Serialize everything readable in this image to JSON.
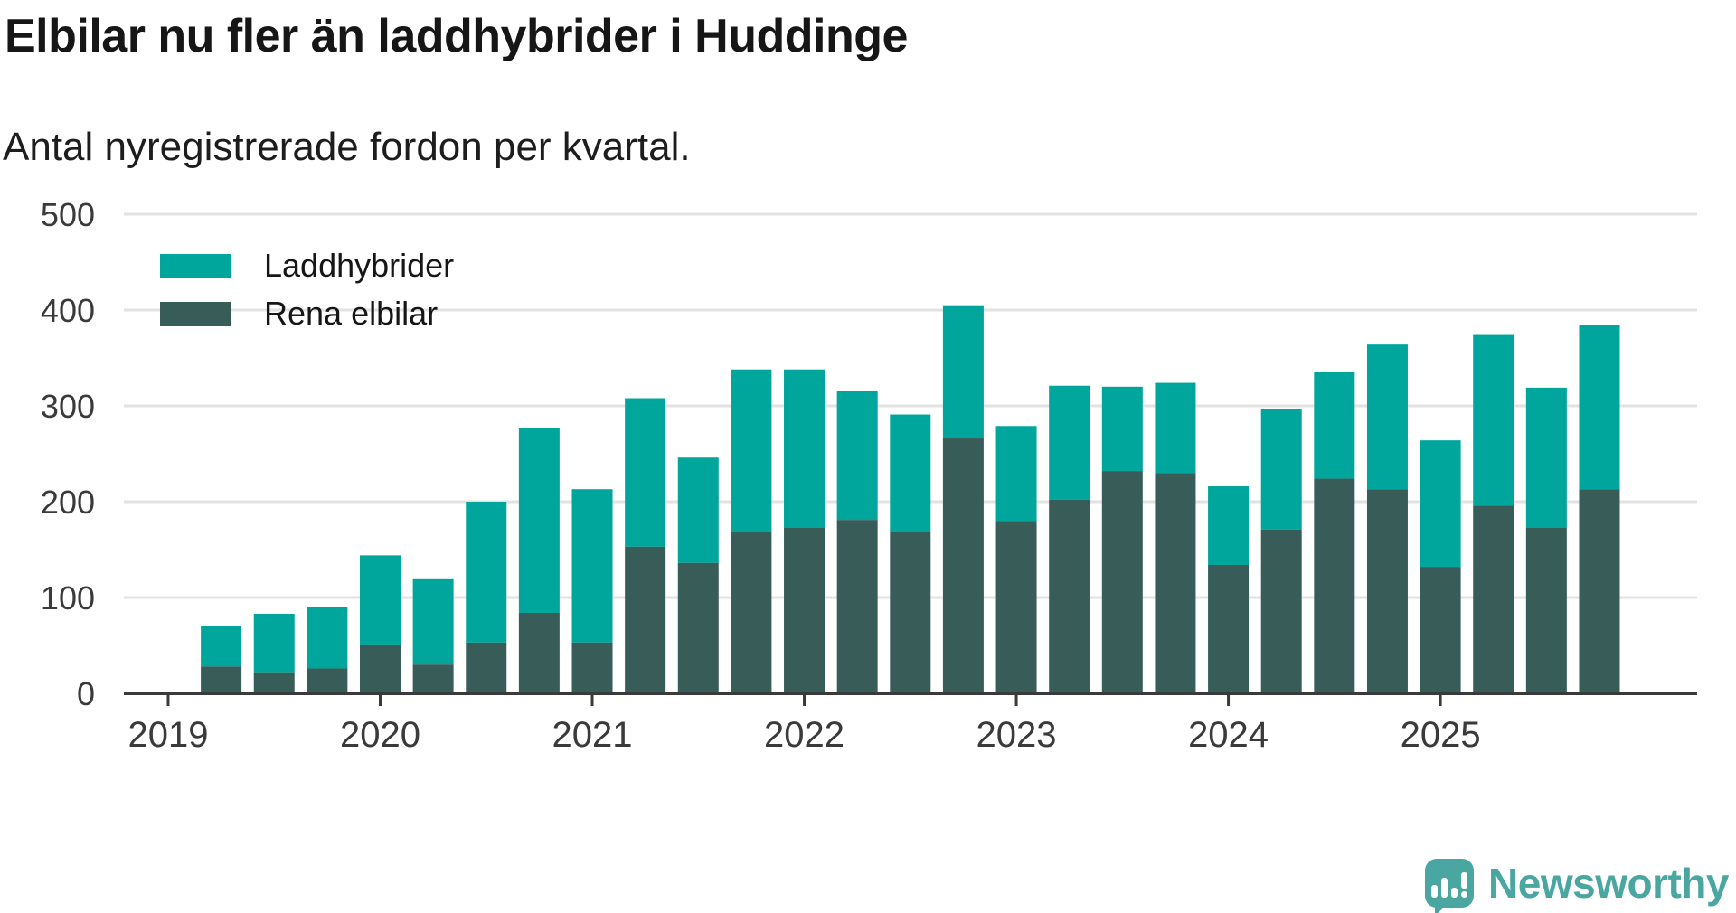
{
  "header": {
    "title": "Elbilar nu fler än laddhybrider i Huddinge",
    "subtitle": "Antal nyregistrerade fordon per kvartal."
  },
  "legend": [
    {
      "label": "Laddhybrider",
      "color": "#00a59c"
    },
    {
      "label": "Rena elbilar",
      "color": "#385d58"
    }
  ],
  "branding": {
    "wordmark": "Newsworthy",
    "color": "#4aa6a1",
    "logo": "speech-bubble-bar-chart-icon"
  },
  "colors": {
    "laddhybrider": "#00a59c",
    "rena_elbilar": "#385d58",
    "axis": "#3a3a3a",
    "tick_label": "#3a3a3a",
    "gridline": "#e2e2e2",
    "text": "#161616"
  },
  "chart_data": {
    "type": "bar",
    "stacked": true,
    "title": "Elbilar nu fler än laddhybrider i Huddinge",
    "subtitle": "Antal nyregistrerade fordon per kvartal.",
    "unit": "antal nyregistrerade fordon",
    "categories": [
      "2019 Q2",
      "2019 Q3",
      "2019 Q4",
      "2020 Q1",
      "2020 Q2",
      "2020 Q3",
      "2020 Q4",
      "2021 Q1",
      "2021 Q2",
      "2021 Q3",
      "2021 Q4",
      "2022 Q1",
      "2022 Q2",
      "2022 Q3",
      "2022 Q4",
      "2023 Q1",
      "2023 Q2",
      "2023 Q3",
      "2023 Q4",
      "2024 Q1",
      "2024 Q2",
      "2024 Q3",
      "2024 Q4",
      "2025 Q1",
      "2025 Q2",
      "2025 Q3",
      "2025 Q4"
    ],
    "series": [
      {
        "name": "Rena elbilar",
        "color": "#385d58",
        "stack_position": "bottom",
        "values": [
          28,
          22,
          26,
          51,
          30,
          53,
          84,
          53,
          153,
          136,
          168,
          173,
          181,
          168,
          266,
          180,
          202,
          232,
          230,
          134,
          171,
          224,
          213,
          132,
          196,
          173,
          213
        ]
      },
      {
        "name": "Laddhybrider",
        "color": "#00a59c",
        "stack_position": "top",
        "values": [
          42,
          61,
          64,
          93,
          90,
          147,
          193,
          160,
          155,
          110,
          170,
          165,
          135,
          123,
          139,
          99,
          119,
          88,
          94,
          82,
          126,
          111,
          151,
          132,
          178,
          146,
          171
        ]
      }
    ],
    "stack_totals": [
      70,
      83,
      90,
      144,
      120,
      200,
      277,
      213,
      308,
      246,
      338,
      338,
      316,
      291,
      405,
      279,
      321,
      320,
      324,
      216,
      297,
      335,
      364,
      264,
      374,
      319,
      384
    ],
    "y_ticks": [
      0,
      100,
      200,
      300,
      400,
      500
    ],
    "ylim": [
      0,
      500
    ],
    "x_ticks": [
      {
        "label": "2019",
        "quarter_index": -1
      },
      {
        "label": "2020",
        "quarter_index": 3
      },
      {
        "label": "2021",
        "quarter_index": 7
      },
      {
        "label": "2022",
        "quarter_index": 11
      },
      {
        "label": "2023",
        "quarter_index": 15
      },
      {
        "label": "2024",
        "quarter_index": 19
      },
      {
        "label": "2025",
        "quarter_index": 23
      }
    ],
    "grid": "horizontal",
    "legend_position": "top-left-inside"
  }
}
